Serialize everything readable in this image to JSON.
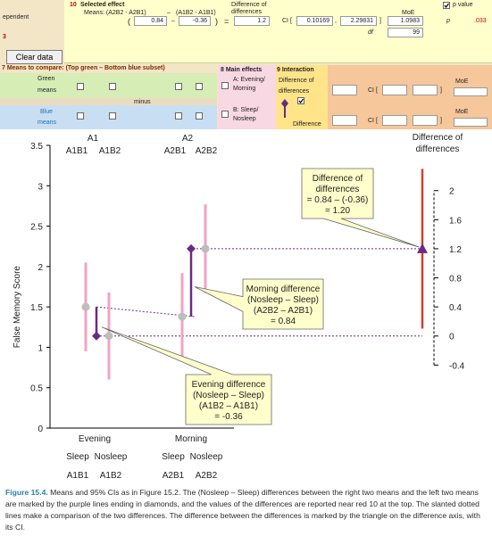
{
  "top_panel": {
    "left_cut": "ependent",
    "effect_num": "10",
    "effect_title": "Selected effect",
    "means_label": "Means: (A2B2 - A2B1)",
    "minus1": "–",
    "means_label2": "(A1B2 - A1B1)",
    "paren_open": "(",
    "val1": "0.84",
    "minus2": "–",
    "val2": "-0.36",
    "paren_close": ")",
    "equals": "=",
    "diff_header": "Difference of differences",
    "diff_val": "1.2",
    "ci_label": "CI [",
    "ci_low": "0.10169",
    "ci_comma": ",",
    "ci_high": "2.29831",
    "ci_close": "]",
    "moe_label": "MoE",
    "moe_val": "1.0983",
    "df_label": "df",
    "df_val": "99",
    "pvalue_label": "p value",
    "p_label": "p",
    "p_val": ".033",
    "row3_num": "3",
    "clear_button": "Clear data"
  },
  "means_panel": {
    "title": "7 Means to compare:  (Top green – Bottom blue subset)",
    "green": "Green",
    "means": "means",
    "minus": "minus",
    "blue": "Blue",
    "means2": "means",
    "main_effects": "8 Main effects",
    "opt_a": "A: Evening/ Morning",
    "opt_b": "B: Sleep/ Nosleep",
    "interaction": "9 Interaction",
    "interaction_sub": "Difference of differences",
    "difference": "Difference",
    "ci1": "CI [",
    "ci1_close": "]",
    "ci2": "CI [",
    "ci2_close": "]",
    "moe1": "MoE",
    "moe2": "MoE"
  },
  "chart_data": {
    "type": "scatter",
    "ylabel": "False Memory Score",
    "ylim": [
      0,
      3.5
    ],
    "yticks": [
      "0",
      "0.5",
      "1",
      "1.5",
      "2",
      "2.5",
      "3",
      "3.5"
    ],
    "diff_axis_ticks": [
      "-0.4",
      "0",
      "0.4",
      "0.8",
      "1.2",
      "1.6",
      "2"
    ],
    "diff_axis_title": "Difference of differences",
    "groups_top": [
      "A1",
      "A2"
    ],
    "cond_labels_top": [
      "A1B1",
      "A1B2",
      "A2B1",
      "A2B2"
    ],
    "group_labels_bottom": [
      "Evening",
      "Morning"
    ],
    "sub_labels_bottom": [
      "Sleep",
      "Nosleep",
      "Sleep",
      "Nosleep"
    ],
    "cond_labels_bottom": [
      "A1B1",
      "A1B2",
      "A2B1",
      "A2B2"
    ],
    "means": [
      {
        "cond": "A1B1",
        "mean": 1.5,
        "ci": [
          0.95,
          2.05
        ]
      },
      {
        "cond": "A1B2",
        "mean": 1.14,
        "ci": [
          0.6,
          1.68
        ]
      },
      {
        "cond": "A2B1",
        "mean": 1.38,
        "ci": [
          0.84,
          1.92
        ]
      },
      {
        "cond": "A2B2",
        "mean": 2.22,
        "ci": [
          1.67,
          2.77
        ]
      }
    ],
    "differences": [
      {
        "name": "Evening",
        "value": -0.36
      },
      {
        "name": "Morning",
        "value": 0.84
      }
    ],
    "diff_of_diff": {
      "value": 1.2,
      "ci": [
        0.10169,
        2.29831
      ]
    },
    "callouts": {
      "dod": [
        "Difference of",
        "differences",
        "= 0.84 – (-0.36)",
        "= 1.20"
      ],
      "morning": [
        "Morning difference",
        "(Nosleep – Sleep)",
        "(A2B2 – A2B1)",
        "= 0.84"
      ],
      "evening": [
        "Evening difference",
        "(Nosleep – Sleep)",
        "(A1B2 – A1B1)",
        "= -0.36"
      ]
    },
    "colors": {
      "means": "#bdbdbd",
      "ci": "#f2a3c3",
      "diff": "#6a2a82",
      "dod": "#d63c2a",
      "callout_bg": "#ffffcc"
    }
  },
  "caption": {
    "figure_label": "Figure 15.4.",
    "text": " Means and 95% CIs as in Figure 15.2. The (Nosleep – Sleep) differences between the right two means and the left two means are marked by the purple lines ending in diamonds, and the values of the differences are reported near red 10 at the top. The slanted dotted lines make a comparison of the two differences. The difference between the differences is marked by the triangle on the difference axis, with its CI."
  }
}
